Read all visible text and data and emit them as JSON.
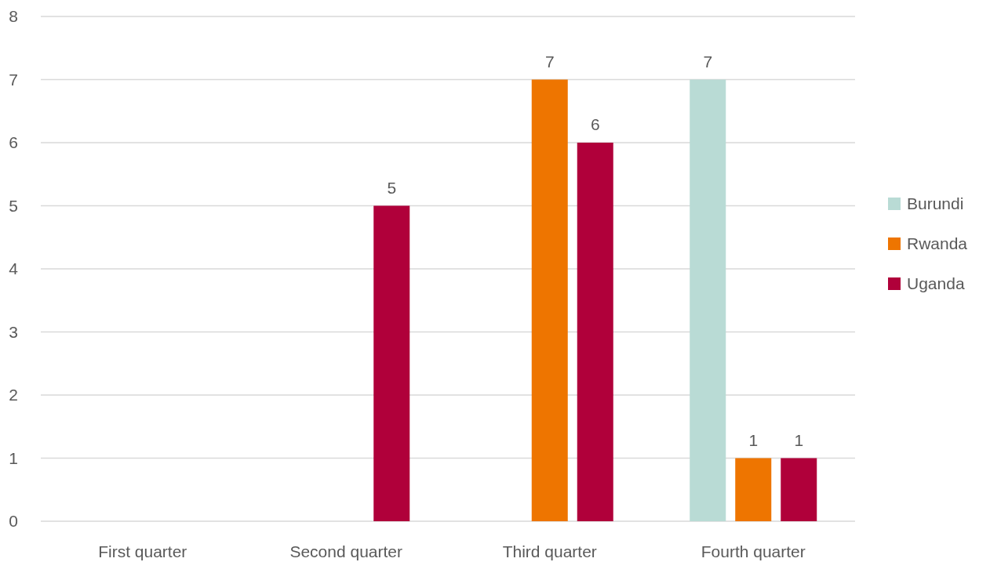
{
  "chart_data": {
    "type": "bar",
    "categories": [
      "First quarter",
      "Second quarter",
      "Third quarter",
      "Fourth quarter"
    ],
    "series": [
      {
        "name": "Burundi",
        "color": "#b9dbd5",
        "values": [
          null,
          null,
          null,
          7
        ]
      },
      {
        "name": "Rwanda",
        "color": "#ee7500",
        "values": [
          null,
          null,
          7,
          1
        ]
      },
      {
        "name": "Uganda",
        "color": "#b0003a",
        "values": [
          null,
          5,
          6,
          1
        ]
      }
    ],
    "ylim": [
      0,
      8
    ],
    "yticks": [
      0,
      1,
      2,
      3,
      4,
      5,
      6,
      7,
      8
    ],
    "grid": "y",
    "legend": "right",
    "data_labels": true
  }
}
